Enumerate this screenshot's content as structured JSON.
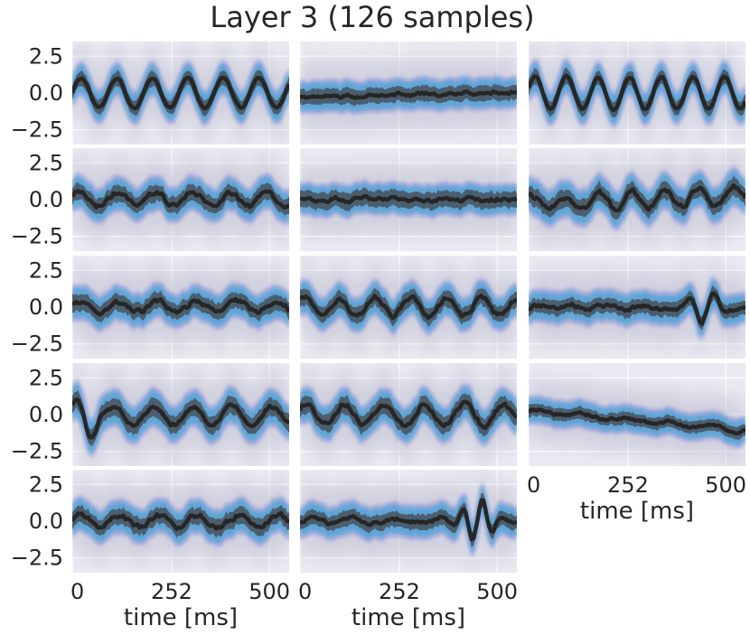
{
  "chart_data": {
    "type": "line",
    "title": "Layer 3 (126 samples)",
    "xlabel": "time [ms]",
    "ylabel": "",
    "xlim": [
      0,
      550
    ],
    "ylim": [
      -3.5,
      3.5
    ],
    "xticks": [
      0,
      252,
      500
    ],
    "xtick_labels": [
      "0",
      "252",
      "500"
    ],
    "yticks": [
      2.5,
      0.0,
      -2.5
    ],
    "ytick_labels": [
      "2.5",
      "0.0",
      "−2.5"
    ],
    "grid": true,
    "rows": 5,
    "cols": 3,
    "colors": {
      "background": "#eaeaf2",
      "mean_line": "#262626",
      "std_band": "#4a5a68",
      "outer_band": "#5aa5d8",
      "haze": "#b4b4c8"
    },
    "panels": [
      {
        "row": 0,
        "col": 0,
        "trend": [
          0.0,
          0.0
        ],
        "components": [
          {
            "amp": 1.0,
            "period": 90,
            "phase": 0.0
          }
        ],
        "noise": 0.05,
        "std": 0.5,
        "spread": 1.3
      },
      {
        "row": 0,
        "col": 1,
        "trend": [
          -0.3,
          0.05
        ],
        "components": [
          {
            "amp": 0.08,
            "period": 60,
            "phase": 0.5
          }
        ],
        "noise": 0.1,
        "std": 0.5,
        "spread": 1.2
      },
      {
        "row": 0,
        "col": 2,
        "trend": [
          0.0,
          0.0
        ],
        "components": [
          {
            "amp": 1.1,
            "period": 80,
            "phase": 0.3
          }
        ],
        "noise": 0.06,
        "std": 0.5,
        "spread": 1.3
      },
      {
        "row": 1,
        "col": 0,
        "trend": [
          0.0,
          0.0
        ],
        "components": [
          {
            "amp": 0.45,
            "period": 95,
            "phase": 0.2
          }
        ],
        "noise": 0.15,
        "std": 0.55,
        "spread": 1.3
      },
      {
        "row": 1,
        "col": 1,
        "trend": [
          0.0,
          0.0
        ],
        "components": [
          {
            "amp": 0.05,
            "period": 70,
            "phase": 0.0
          }
        ],
        "noise": 0.12,
        "std": 0.55,
        "spread": 1.1
      },
      {
        "row": 1,
        "col": 2,
        "trend": [
          -0.3,
          0.3
        ],
        "components": [
          {
            "amp": 0.5,
            "period": 85,
            "phase": 1.0
          }
        ],
        "noise": 0.18,
        "std": 0.6,
        "spread": 1.4
      },
      {
        "row": 2,
        "col": 0,
        "trend": [
          0.0,
          0.0
        ],
        "components": [
          {
            "amp": 0.35,
            "period": 100,
            "phase": 0.4
          }
        ],
        "noise": 0.15,
        "std": 0.55,
        "spread": 1.3
      },
      {
        "row": 2,
        "col": 1,
        "trend": [
          0.0,
          0.0
        ],
        "components": [
          {
            "amp": 0.6,
            "period": 90,
            "phase": 0.8
          }
        ],
        "noise": 0.15,
        "std": 0.55,
        "spread": 1.3
      },
      {
        "row": 2,
        "col": 2,
        "trend": [
          0.0,
          0.0
        ],
        "components": [
          {
            "amp": 0.12,
            "period": 90,
            "phase": 0.0
          },
          {
            "amp": 0.9,
            "period": 65,
            "phase": 0.0,
            "center": 440,
            "width": 60
          }
        ],
        "noise": 0.12,
        "std": 0.5,
        "spread": 1.3
      },
      {
        "row": 3,
        "col": 0,
        "trend": [
          -0.1,
          0.0
        ],
        "components": [
          {
            "amp": 0.6,
            "period": 100,
            "phase": 1.2
          },
          {
            "amp": 1.0,
            "period": 80,
            "phase": 1.0,
            "center": 40,
            "width": 40
          }
        ],
        "noise": 0.12,
        "std": 0.6,
        "spread": 1.4
      },
      {
        "row": 3,
        "col": 1,
        "trend": [
          0.0,
          0.0
        ],
        "components": [
          {
            "amp": 0.7,
            "period": 100,
            "phase": 0.6
          }
        ],
        "noise": 0.15,
        "std": 0.6,
        "spread": 1.3
      },
      {
        "row": 3,
        "col": 2,
        "trend": [
          0.3,
          -1.1
        ],
        "components": [
          {
            "amp": 0.12,
            "period": 110,
            "phase": 0.0
          }
        ],
        "noise": 0.08,
        "std": 0.4,
        "spread": 1.1
      },
      {
        "row": 4,
        "col": 0,
        "trend": [
          0.0,
          0.0
        ],
        "components": [
          {
            "amp": 0.4,
            "period": 100,
            "phase": 0.3
          }
        ],
        "noise": 0.15,
        "std": 0.55,
        "spread": 1.3
      },
      {
        "row": 4,
        "col": 1,
        "trend": [
          0.0,
          0.0
        ],
        "components": [
          {
            "amp": 0.15,
            "period": 110,
            "phase": 0.0
          },
          {
            "amp": 1.3,
            "period": 50,
            "phase": 0.0,
            "center": 450,
            "width": 50
          }
        ],
        "noise": 0.12,
        "std": 0.5,
        "spread": 1.3
      }
    ]
  }
}
